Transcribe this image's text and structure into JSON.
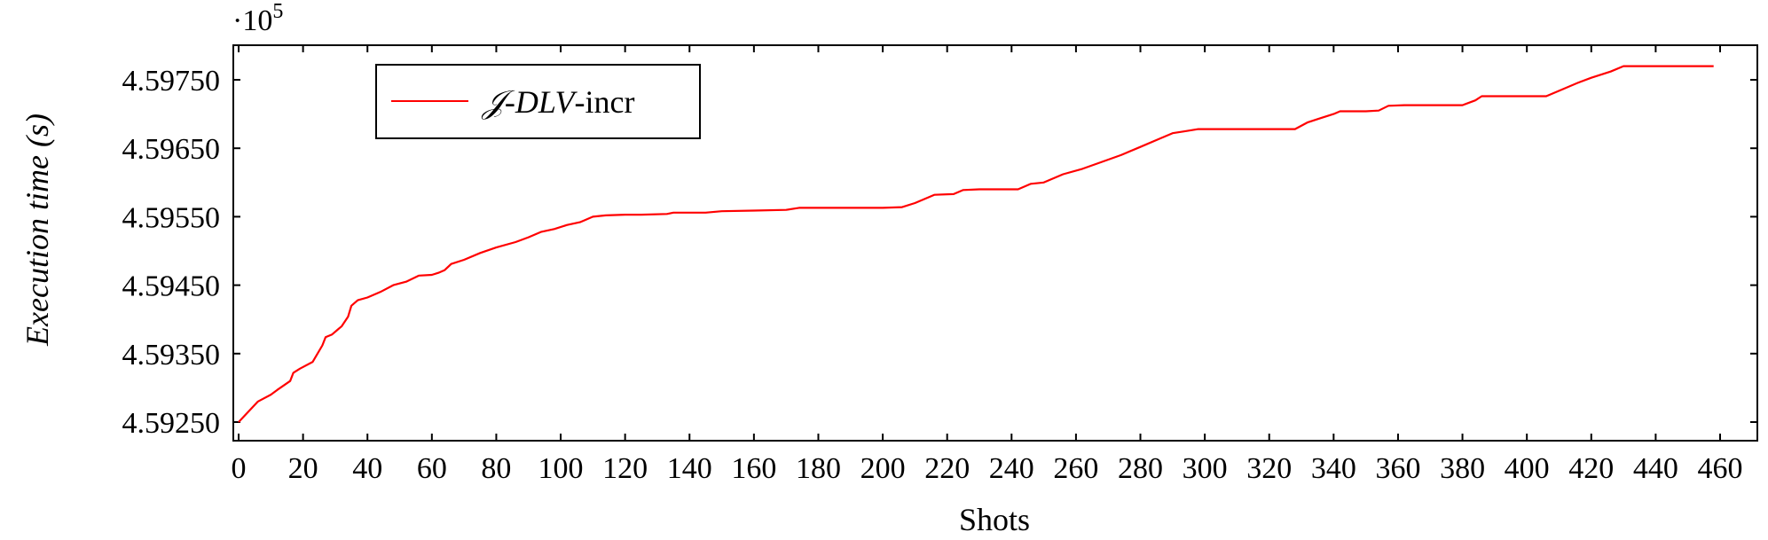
{
  "chart_data": {
    "type": "line",
    "xlabel": "Shots",
    "ylabel": "Execution time (s)",
    "y_multiplier": "·10^5",
    "y_multiplier_base": "·10",
    "y_multiplier_exp": "5",
    "xlim": [
      0,
      460
    ],
    "ylim": [
      4.5924,
      4.5981
    ],
    "x_ticks": [
      0,
      20,
      40,
      60,
      80,
      100,
      120,
      140,
      160,
      180,
      200,
      220,
      240,
      260,
      280,
      300,
      320,
      340,
      360,
      380,
      400,
      420,
      440,
      460
    ],
    "y_ticks": [
      4.5925,
      4.5935,
      4.5945,
      4.5955,
      4.5965,
      4.5975
    ],
    "y_tick_labels": [
      "4.59250",
      "4.59350",
      "4.59450",
      "4.59550",
      "4.59650",
      "4.59750"
    ],
    "grid": false,
    "legend_position": "top-left",
    "series": [
      {
        "name": "𝒥-DLV-incr",
        "name_script": "𝒥",
        "name_italic": "-DLV",
        "name_plain": "-incr",
        "color": "#ff0000",
        "points": [
          [
            0,
            4.5925
          ],
          [
            3,
            4.59265
          ],
          [
            6,
            4.5928
          ],
          [
            10,
            4.5929
          ],
          [
            12,
            4.59297
          ],
          [
            16,
            4.5931
          ],
          [
            17,
            4.59322
          ],
          [
            19,
            4.59328
          ],
          [
            23,
            4.59338
          ],
          [
            24,
            4.59346
          ],
          [
            26,
            4.59362
          ],
          [
            27,
            4.59374
          ],
          [
            29,
            4.59378
          ],
          [
            32,
            4.5939
          ],
          [
            34,
            4.59404
          ],
          [
            35,
            4.5942
          ],
          [
            37,
            4.59428
          ],
          [
            40,
            4.59432
          ],
          [
            44,
            4.5944
          ],
          [
            48,
            4.5945
          ],
          [
            52,
            4.59455
          ],
          [
            56,
            4.59464
          ],
          [
            60,
            4.59465
          ],
          [
            62,
            4.59468
          ],
          [
            64,
            4.59472
          ],
          [
            66,
            4.59481
          ],
          [
            70,
            4.59487
          ],
          [
            75,
            4.59497
          ],
          [
            80,
            4.59505
          ],
          [
            86,
            4.59513
          ],
          [
            90,
            4.5952
          ],
          [
            94,
            4.59528
          ],
          [
            98,
            4.59532
          ],
          [
            102,
            4.59538
          ],
          [
            106,
            4.59542
          ],
          [
            108,
            4.59546
          ],
          [
            110,
            4.5955
          ],
          [
            114,
            4.59552
          ],
          [
            120,
            4.59553
          ],
          [
            125,
            4.59553
          ],
          [
            133,
            4.59554
          ],
          [
            135,
            4.59556
          ],
          [
            145,
            4.59556
          ],
          [
            150,
            4.59558
          ],
          [
            160,
            4.59559
          ],
          [
            170,
            4.5956
          ],
          [
            174,
            4.59563
          ],
          [
            180,
            4.59563
          ],
          [
            190,
            4.59563
          ],
          [
            200,
            4.59563
          ],
          [
            206,
            4.59564
          ],
          [
            210,
            4.5957
          ],
          [
            216,
            4.59582
          ],
          [
            222,
            4.59583
          ],
          [
            225,
            4.59589
          ],
          [
            230,
            4.5959
          ],
          [
            242,
            4.5959
          ],
          [
            246,
            4.59598
          ],
          [
            250,
            4.596
          ],
          [
            256,
            4.59612
          ],
          [
            262,
            4.5962
          ],
          [
            268,
            4.5963
          ],
          [
            274,
            4.5964
          ],
          [
            280,
            4.59652
          ],
          [
            286,
            4.59664
          ],
          [
            290,
            4.59672
          ],
          [
            294,
            4.59675
          ],
          [
            298,
            4.59678
          ],
          [
            310,
            4.59678
          ],
          [
            320,
            4.59678
          ],
          [
            328,
            4.59678
          ],
          [
            332,
            4.59688
          ],
          [
            336,
            4.59694
          ],
          [
            340,
            4.597
          ],
          [
            342,
            4.59704
          ],
          [
            350,
            4.59704
          ],
          [
            354,
            4.59705
          ],
          [
            357,
            4.59712
          ],
          [
            362,
            4.59713
          ],
          [
            372,
            4.59713
          ],
          [
            380,
            4.59713
          ],
          [
            384,
            4.5972
          ],
          [
            386,
            4.59726
          ],
          [
            396,
            4.59726
          ],
          [
            406,
            4.59726
          ],
          [
            410,
            4.59734
          ],
          [
            416,
            4.59746
          ],
          [
            420,
            4.59753
          ],
          [
            426,
            4.59762
          ],
          [
            430,
            4.5977
          ],
          [
            440,
            4.5977
          ],
          [
            450,
            4.5977
          ],
          [
            458,
            4.5977
          ]
        ]
      }
    ]
  }
}
